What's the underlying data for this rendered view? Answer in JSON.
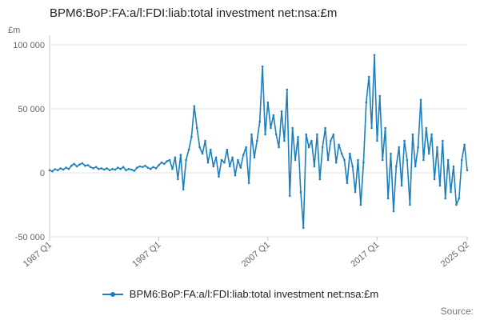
{
  "title": "BPM6:BoP:FA:a/l:FDI:liab:total investment net:nsa:£m",
  "unit_label": "£m",
  "source_label": "Source:",
  "legend": {
    "label": "BPM6:BoP:FA:a/l:FDI:liab:total investment net:nsa:£m"
  },
  "colors": {
    "line": "#1b7fbe",
    "grid": "#e2e2e2",
    "axis": "#c8c8c8",
    "axis_text": "#666666",
    "title_text": "#222222",
    "source_text": "#777777"
  },
  "chart_data": {
    "type": "line",
    "title": "BPM6:BoP:FA:a/l:FDI:liab:total investment net:nsa:£m",
    "xlabel": "",
    "ylabel": "£m",
    "start_period": "1987 Q1",
    "end_period": "2025 Q2",
    "frequency": "quarterly",
    "grid": true,
    "legend_position": "bottom",
    "ylim": [
      -50000,
      100000
    ],
    "y_ticks": [
      100000,
      50000,
      0,
      -50000
    ],
    "y_tick_labels": [
      "100 000",
      "50 000",
      "0",
      "-50 000"
    ],
    "x_tick_indices": [
      0,
      40,
      80,
      120,
      153
    ],
    "x_tick_labels": [
      "1987 Q1",
      "1997 Q1",
      "2007 Q1",
      "2017 Q1",
      "2025 Q2"
    ],
    "series": [
      {
        "name": "BPM6:BoP:FA:a/l:FDI:liab:total investment net:nsa:£m",
        "values": [
          2000,
          1200,
          2800,
          2000,
          3500,
          2500,
          4000,
          3000,
          5500,
          7000,
          5000,
          6500,
          7500,
          5500,
          6000,
          4500,
          3500,
          4500,
          3000,
          3500,
          2500,
          3500,
          2000,
          3000,
          2500,
          4000,
          3000,
          4500,
          2000,
          3000,
          2500,
          1500,
          4000,
          5000,
          4500,
          5500,
          4000,
          3000,
          4500,
          3500,
          6000,
          8000,
          7000,
          9000,
          10000,
          3000,
          12000,
          -5000,
          14000,
          -13000,
          10000,
          18000,
          28000,
          52000,
          35000,
          20000,
          15000,
          25000,
          8000,
          18000,
          5000,
          12000,
          -3000,
          10000,
          8000,
          18000,
          5000,
          12000,
          -2000,
          10000,
          4000,
          14000,
          20000,
          -8000,
          30000,
          12000,
          25000,
          40000,
          83000,
          30000,
          55000,
          35000,
          45000,
          30000,
          20000,
          48000,
          25000,
          65000,
          -18000,
          35000,
          10000,
          28000,
          -15000,
          -43000,
          30000,
          20000,
          25000,
          5000,
          30000,
          -5000,
          20000,
          35000,
          10000,
          25000,
          30000,
          8000,
          22000,
          15000,
          10000,
          -8000,
          15000,
          5000,
          -15000,
          10000,
          -25000,
          8000,
          55000,
          75000,
          35000,
          92000,
          25000,
          60000,
          10000,
          35000,
          -20000,
          15000,
          -30000,
          5000,
          20000,
          -10000,
          25000,
          10000,
          -25000,
          30000,
          5000,
          20000,
          57000,
          10000,
          35000,
          15000,
          30000,
          -5000,
          20000,
          -10000,
          25000,
          -20000,
          10000,
          -15000,
          5000,
          -25000,
          -20000,
          10000,
          22000,
          2000
        ]
      }
    ]
  }
}
